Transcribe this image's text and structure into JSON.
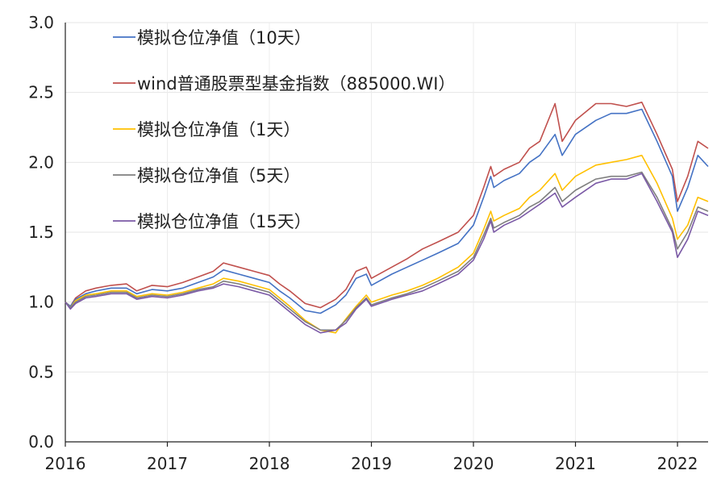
{
  "chart_data": {
    "type": "line",
    "title": "",
    "xlabel": "",
    "ylabel": "",
    "xlim": [
      2016.0,
      2022.3
    ],
    "ylim": [
      0,
      3.0
    ],
    "x_ticks": [
      2016,
      2017,
      2018,
      2019,
      2020,
      2021,
      2022
    ],
    "x_tick_labels": [
      "2016",
      "2017",
      "2018",
      "2019",
      "2020",
      "2021",
      "2022"
    ],
    "y_ticks": [
      0,
      0.5,
      1.0,
      1.5,
      2.0,
      2.5,
      3.0
    ],
    "y_tick_labels": [
      "0.0",
      "0.5",
      "1.0",
      "1.5",
      "2.0",
      "2.5",
      "3.0"
    ],
    "grid": true,
    "legend_position": "top-left",
    "series": [
      {
        "name": "模拟仓位净值（10天）",
        "color": "#4472C4",
        "x": [
          2016.0,
          2016.05,
          2016.1,
          2016.2,
          2016.3,
          2016.45,
          2016.6,
          2016.7,
          2016.85,
          2017.0,
          2017.15,
          2017.3,
          2017.45,
          2017.55,
          2017.7,
          2017.85,
          2018.0,
          2018.1,
          2018.2,
          2018.35,
          2018.5,
          2018.65,
          2018.75,
          2018.85,
          2018.95,
          2019.0,
          2019.2,
          2019.35,
          2019.5,
          2019.65,
          2019.85,
          2020.0,
          2020.1,
          2020.17,
          2020.2,
          2020.3,
          2020.45,
          2020.55,
          2020.65,
          2020.8,
          2020.87,
          2021.0,
          2021.2,
          2021.35,
          2021.5,
          2021.65,
          2021.8,
          2021.95,
          2022.0,
          2022.1,
          2022.2,
          2022.3
        ],
        "values": [
          1.0,
          0.97,
          1.02,
          1.06,
          1.08,
          1.1,
          1.1,
          1.06,
          1.09,
          1.08,
          1.1,
          1.14,
          1.18,
          1.23,
          1.2,
          1.17,
          1.14,
          1.08,
          1.03,
          0.94,
          0.92,
          0.98,
          1.05,
          1.17,
          1.2,
          1.12,
          1.2,
          1.25,
          1.3,
          1.35,
          1.42,
          1.55,
          1.75,
          1.9,
          1.82,
          1.87,
          1.92,
          2.0,
          2.05,
          2.2,
          2.05,
          2.2,
          2.3,
          2.35,
          2.35,
          2.38,
          2.15,
          1.9,
          1.65,
          1.82,
          2.05,
          1.97
        ]
      },
      {
        "name": "wind普通股票型基金指数（885000.WI）",
        "color": "#C0504D",
        "x": [
          2016.0,
          2016.05,
          2016.1,
          2016.2,
          2016.3,
          2016.45,
          2016.6,
          2016.7,
          2016.85,
          2017.0,
          2017.15,
          2017.3,
          2017.45,
          2017.55,
          2017.7,
          2017.85,
          2018.0,
          2018.1,
          2018.2,
          2018.35,
          2018.5,
          2018.65,
          2018.75,
          2018.85,
          2018.95,
          2019.0,
          2019.2,
          2019.35,
          2019.5,
          2019.65,
          2019.85,
          2020.0,
          2020.1,
          2020.17,
          2020.2,
          2020.3,
          2020.45,
          2020.55,
          2020.65,
          2020.8,
          2020.87,
          2021.0,
          2021.2,
          2021.35,
          2021.5,
          2021.65,
          2021.8,
          2021.95,
          2022.0,
          2022.1,
          2022.2,
          2022.3
        ],
        "values": [
          1.0,
          0.97,
          1.03,
          1.08,
          1.1,
          1.12,
          1.13,
          1.08,
          1.12,
          1.11,
          1.14,
          1.18,
          1.22,
          1.28,
          1.25,
          1.22,
          1.19,
          1.13,
          1.08,
          0.99,
          0.96,
          1.02,
          1.09,
          1.22,
          1.25,
          1.17,
          1.25,
          1.31,
          1.38,
          1.43,
          1.5,
          1.62,
          1.82,
          1.97,
          1.9,
          1.95,
          2.0,
          2.1,
          2.15,
          2.42,
          2.15,
          2.3,
          2.42,
          2.42,
          2.4,
          2.43,
          2.2,
          1.95,
          1.72,
          1.9,
          2.15,
          2.1
        ]
      },
      {
        "name": "模拟仓位净值（1天）",
        "color": "#FFC000",
        "x": [
          2016.0,
          2016.05,
          2016.1,
          2016.2,
          2016.3,
          2016.45,
          2016.6,
          2016.7,
          2016.85,
          2017.0,
          2017.15,
          2017.3,
          2017.45,
          2017.55,
          2017.7,
          2017.85,
          2018.0,
          2018.1,
          2018.2,
          2018.35,
          2018.5,
          2018.65,
          2018.75,
          2018.85,
          2018.95,
          2019.0,
          2019.2,
          2019.35,
          2019.5,
          2019.65,
          2019.85,
          2020.0,
          2020.1,
          2020.17,
          2020.2,
          2020.3,
          2020.45,
          2020.55,
          2020.65,
          2020.8,
          2020.87,
          2021.0,
          2021.2,
          2021.35,
          2021.5,
          2021.65,
          2021.8,
          2021.95,
          2022.0,
          2022.1,
          2022.2,
          2022.3
        ],
        "values": [
          1.0,
          0.96,
          1.01,
          1.05,
          1.06,
          1.08,
          1.08,
          1.04,
          1.06,
          1.05,
          1.07,
          1.1,
          1.13,
          1.17,
          1.15,
          1.12,
          1.09,
          1.03,
          0.97,
          0.87,
          0.8,
          0.78,
          0.88,
          0.97,
          1.05,
          1.0,
          1.05,
          1.08,
          1.12,
          1.17,
          1.25,
          1.35,
          1.52,
          1.65,
          1.58,
          1.62,
          1.67,
          1.75,
          1.8,
          1.92,
          1.8,
          1.9,
          1.98,
          2.0,
          2.02,
          2.05,
          1.85,
          1.6,
          1.45,
          1.55,
          1.75,
          1.72
        ]
      },
      {
        "name": "模拟仓位净值（5天）",
        "color": "#7F7F7F",
        "x": [
          2016.0,
          2016.05,
          2016.1,
          2016.2,
          2016.3,
          2016.45,
          2016.6,
          2016.7,
          2016.85,
          2017.0,
          2017.15,
          2017.3,
          2017.45,
          2017.55,
          2017.7,
          2017.85,
          2018.0,
          2018.1,
          2018.2,
          2018.35,
          2018.5,
          2018.65,
          2018.75,
          2018.85,
          2018.95,
          2019.0,
          2019.2,
          2019.35,
          2019.5,
          2019.65,
          2019.85,
          2020.0,
          2020.1,
          2020.17,
          2020.2,
          2020.3,
          2020.45,
          2020.55,
          2020.65,
          2020.8,
          2020.87,
          2021.0,
          2021.2,
          2021.35,
          2021.5,
          2021.65,
          2021.8,
          2021.95,
          2022.0,
          2022.1,
          2022.2,
          2022.3
        ],
        "values": [
          1.0,
          0.96,
          1.0,
          1.04,
          1.05,
          1.07,
          1.07,
          1.03,
          1.05,
          1.04,
          1.06,
          1.09,
          1.11,
          1.15,
          1.13,
          1.1,
          1.07,
          1.01,
          0.95,
          0.86,
          0.8,
          0.8,
          0.87,
          0.96,
          1.03,
          0.98,
          1.03,
          1.06,
          1.1,
          1.15,
          1.22,
          1.32,
          1.48,
          1.6,
          1.53,
          1.57,
          1.62,
          1.68,
          1.72,
          1.82,
          1.72,
          1.8,
          1.88,
          1.9,
          1.9,
          1.93,
          1.75,
          1.52,
          1.38,
          1.5,
          1.68,
          1.65
        ]
      },
      {
        "name": "模拟仓位净值（15天）",
        "color": "#7B5AA6",
        "x": [
          2016.0,
          2016.05,
          2016.1,
          2016.2,
          2016.3,
          2016.45,
          2016.6,
          2016.7,
          2016.85,
          2017.0,
          2017.15,
          2017.3,
          2017.45,
          2017.55,
          2017.7,
          2017.85,
          2018.0,
          2018.1,
          2018.2,
          2018.35,
          2018.5,
          2018.65,
          2018.75,
          2018.85,
          2018.95,
          2019.0,
          2019.2,
          2019.35,
          2019.5,
          2019.65,
          2019.85,
          2020.0,
          2020.1,
          2020.17,
          2020.2,
          2020.3,
          2020.45,
          2020.55,
          2020.65,
          2020.8,
          2020.87,
          2021.0,
          2021.2,
          2021.35,
          2021.5,
          2021.65,
          2021.8,
          2021.95,
          2022.0,
          2022.1,
          2022.2,
          2022.3
        ],
        "values": [
          1.0,
          0.95,
          0.99,
          1.03,
          1.04,
          1.06,
          1.06,
          1.02,
          1.04,
          1.03,
          1.05,
          1.08,
          1.1,
          1.13,
          1.11,
          1.08,
          1.05,
          0.99,
          0.93,
          0.84,
          0.78,
          0.8,
          0.85,
          0.95,
          1.02,
          0.97,
          1.02,
          1.05,
          1.08,
          1.13,
          1.2,
          1.3,
          1.45,
          1.58,
          1.5,
          1.55,
          1.6,
          1.65,
          1.7,
          1.78,
          1.68,
          1.75,
          1.85,
          1.88,
          1.88,
          1.92,
          1.72,
          1.5,
          1.32,
          1.45,
          1.65,
          1.62
        ]
      }
    ]
  }
}
